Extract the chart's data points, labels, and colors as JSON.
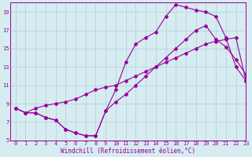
{
  "xlabel": "Windchill (Refroidissement éolien,°C)",
  "bg_color": "#d6ecf0",
  "grid_color": "#b8d8e0",
  "line_color": "#990099",
  "xlim": [
    -0.5,
    23
  ],
  "ylim": [
    5,
    20
  ],
  "yticks": [
    5,
    7,
    9,
    11,
    13,
    15,
    17,
    19
  ],
  "xticks": [
    0,
    1,
    2,
    3,
    4,
    5,
    6,
    7,
    8,
    9,
    10,
    11,
    12,
    13,
    14,
    15,
    16,
    17,
    18,
    19,
    20,
    21,
    22,
    23
  ],
  "line1_x": [
    0,
    1,
    2,
    3,
    4,
    5,
    6,
    7,
    8,
    9,
    10,
    11,
    12,
    13,
    14,
    15,
    16,
    17,
    18,
    19,
    20,
    21,
    22,
    23
  ],
  "line1_y": [
    8.5,
    8.0,
    8.0,
    7.5,
    7.2,
    6.2,
    5.8,
    5.5,
    5.5,
    8.2,
    9.2,
    10.0,
    11.0,
    12.0,
    13.0,
    14.0,
    15.0,
    16.0,
    17.0,
    17.5,
    16.0,
    15.2,
    13.8,
    12.2
  ],
  "line2_x": [
    0,
    1,
    2,
    3,
    4,
    5,
    6,
    7,
    8,
    9,
    10,
    11,
    12,
    13,
    14,
    15,
    16,
    17,
    18,
    19,
    20,
    21,
    22,
    23
  ],
  "line2_y": [
    8.5,
    8.0,
    8.0,
    7.5,
    7.2,
    6.2,
    5.8,
    5.5,
    5.5,
    8.2,
    10.5,
    13.5,
    15.5,
    16.2,
    16.8,
    18.5,
    19.8,
    19.5,
    19.2,
    19.0,
    18.5,
    16.2,
    13.0,
    11.5
  ],
  "line3_x": [
    0,
    1,
    2,
    3,
    4,
    5,
    6,
    7,
    8,
    9,
    10,
    11,
    12,
    13,
    14,
    15,
    16,
    17,
    18,
    19,
    20,
    21,
    22,
    23
  ],
  "line3_y": [
    8.5,
    8.0,
    8.5,
    8.8,
    9.0,
    9.2,
    9.5,
    10.0,
    10.5,
    10.8,
    11.0,
    11.5,
    12.0,
    12.5,
    13.0,
    13.5,
    14.0,
    14.5,
    15.0,
    15.5,
    15.8,
    16.0,
    16.2,
    11.5
  ]
}
